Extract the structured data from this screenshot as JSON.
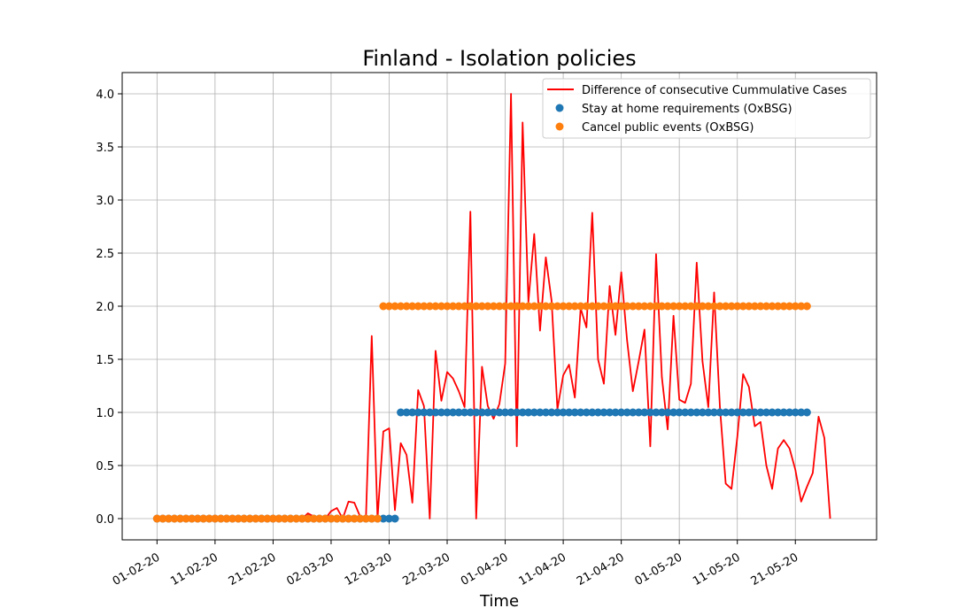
{
  "chart_data": {
    "type": "line",
    "title": "Finland - Isolation policies",
    "xlabel": "Time",
    "ylabel": "",
    "grid": true,
    "legend_position": "top-right",
    "x_start": "2020-02-01",
    "x_end": "2020-05-26",
    "xlim": [
      "2020-01-26",
      "2020-06-04"
    ],
    "ylim": [
      -0.2,
      4.2
    ],
    "x_ticks": [
      "01-02-20",
      "11-02-20",
      "21-02-20",
      "02-03-20",
      "12-03-20",
      "22-03-20",
      "01-04-20",
      "11-04-20",
      "21-04-20",
      "01-05-20",
      "11-05-20",
      "21-05-20"
    ],
    "y_ticks": [
      "0.0",
      "0.5",
      "1.0",
      "1.5",
      "2.0",
      "2.5",
      "3.0",
      "3.5",
      "4.0"
    ],
    "series": [
      {
        "name": "Difference of consecutive Cummulative Cases",
        "kind": "line",
        "color": "#ff0000",
        "x_start": "2020-02-01",
        "values": [
          0,
          0,
          0,
          0,
          0,
          0,
          0,
          0,
          0,
          0,
          0,
          0,
          0,
          0,
          0,
          0,
          0,
          0,
          0,
          0,
          0,
          0,
          0,
          0,
          0,
          0,
          0.05,
          0.02,
          0,
          0,
          0.07,
          0.1,
          0,
          0.16,
          0.15,
          0.02,
          0,
          1.72,
          0,
          0.82,
          0.85,
          0.08,
          0.71,
          0.6,
          0.15,
          1.21,
          1.06,
          0,
          1.58,
          1.11,
          1.38,
          1.32,
          1.2,
          1.05,
          2.89,
          0,
          1.43,
          1.06,
          0.94,
          1.08,
          1.46,
          4.0,
          0.68,
          3.73,
          2.04,
          2.68,
          1.77,
          2.46,
          2.05,
          1.03,
          1.35,
          1.45,
          1.14,
          1.98,
          1.8,
          2.88,
          1.5,
          1.27,
          2.19,
          1.73,
          2.32,
          1.68,
          1.2,
          1.48,
          1.78,
          0.68,
          2.49,
          1.33,
          0.84,
          1.91,
          1.12,
          1.09,
          1.27,
          2.41,
          1.48,
          1.05,
          2.13,
          1.05,
          0.33,
          0.28,
          0.77,
          1.36,
          1.24,
          0.87,
          0.91,
          0.5,
          0.28,
          0.66,
          0.74,
          0.66,
          0.46,
          0.16,
          0.3,
          0.43,
          0.96,
          0.76,
          0
        ]
      },
      {
        "name": "Stay at home requirements (OxBSG)",
        "kind": "scatter",
        "color": "#1f77b4",
        "x_start": "2020-02-01",
        "values": [
          0,
          0,
          0,
          0,
          0,
          0,
          0,
          0,
          0,
          0,
          0,
          0,
          0,
          0,
          0,
          0,
          0,
          0,
          0,
          0,
          0,
          0,
          0,
          0,
          0,
          0,
          0,
          0,
          0,
          0,
          0,
          0,
          0,
          0,
          0,
          0,
          0,
          0,
          0,
          0,
          0,
          0,
          1,
          1,
          1,
          1,
          1,
          1,
          1,
          1,
          1,
          1,
          1,
          1,
          1,
          1,
          1,
          1,
          1,
          1,
          1,
          1,
          1,
          1,
          1,
          1,
          1,
          1,
          1,
          1,
          1,
          1,
          1,
          1,
          1,
          1,
          1,
          1,
          1,
          1,
          1,
          1,
          1,
          1,
          1,
          1,
          1,
          1,
          1,
          1,
          1,
          1,
          1,
          1,
          1,
          1,
          1,
          1,
          1,
          1,
          1,
          1,
          1,
          1,
          1,
          1,
          1,
          1,
          1,
          1,
          1,
          1,
          1
        ]
      },
      {
        "name": "Cancel public events (OxBSG)",
        "kind": "scatter",
        "color": "#ff7f0e",
        "x_start": "2020-02-01",
        "values": [
          0,
          0,
          0,
          0,
          0,
          0,
          0,
          0,
          0,
          0,
          0,
          0,
          0,
          0,
          0,
          0,
          0,
          0,
          0,
          0,
          0,
          0,
          0,
          0,
          0,
          0,
          0,
          0,
          0,
          0,
          0,
          0,
          0,
          0,
          0,
          0,
          0,
          0,
          0,
          0,
          0,
          0,
          0,
          0,
          0,
          0,
          0,
          0,
          0,
          0,
          0,
          0,
          0,
          0,
          0,
          0,
          0,
          0,
          0,
          0,
          0,
          0,
          0,
          0,
          0,
          0,
          0,
          0,
          0,
          0,
          0,
          0,
          0,
          0,
          0,
          0,
          0,
          0,
          0,
          0,
          0,
          0,
          0,
          0,
          0,
          0,
          0,
          0,
          0,
          0,
          0,
          0,
          0,
          0,
          0,
          0,
          0,
          0,
          0,
          0,
          0,
          0,
          0,
          0,
          0,
          0,
          0,
          0,
          0,
          0,
          0,
          0,
          0
        ],
        "values_override": {
          "from": "2020-03-11",
          "value": 2
        }
      }
    ]
  }
}
